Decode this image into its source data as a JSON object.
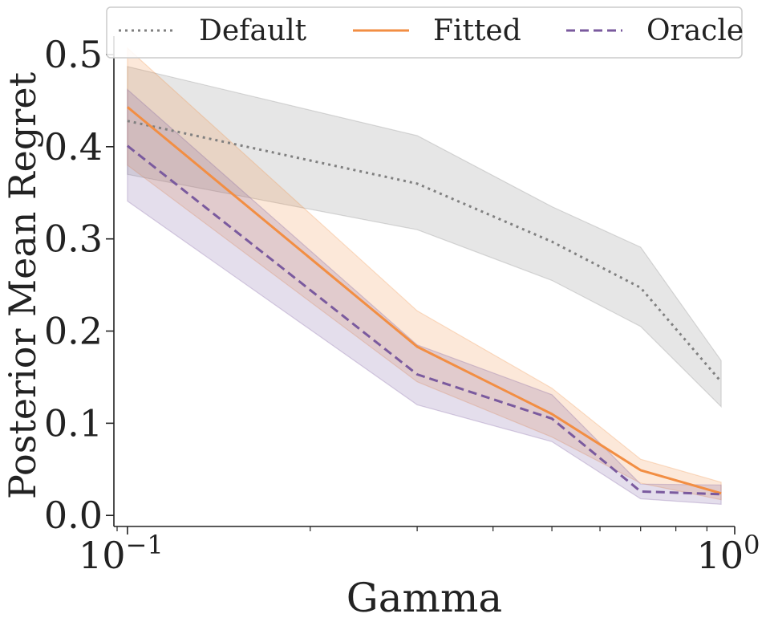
{
  "chart_data": {
    "type": "line",
    "xlabel": "Gamma",
    "ylabel": "Posterior Mean Regret",
    "xscale": "log",
    "xlim": [
      0.095,
      1.0
    ],
    "ylim": [
      -0.012,
      0.52
    ],
    "x_ticks": [
      {
        "base": "10",
        "exp": "−1",
        "value": 0.1
      },
      {
        "base": "10",
        "exp": "0",
        "value": 1.0
      }
    ],
    "y_ticks": [
      "0.0",
      "0.1",
      "0.2",
      "0.3",
      "0.4",
      "0.5"
    ],
    "legend_position": "top",
    "x": [
      0.1,
      0.3,
      0.5,
      0.7,
      0.95
    ],
    "series": [
      {
        "name": "Default",
        "color": "#808080",
        "style": "dotted",
        "values": [
          0.428,
          0.36,
          0.297,
          0.247,
          0.145
        ],
        "lower": [
          0.37,
          0.31,
          0.255,
          0.205,
          0.118
        ],
        "upper": [
          0.487,
          0.412,
          0.335,
          0.291,
          0.168
        ]
      },
      {
        "name": "Fitted",
        "color": "#f28e43",
        "style": "solid",
        "values": [
          0.443,
          0.183,
          0.11,
          0.049,
          0.024
        ],
        "lower": [
          0.38,
          0.145,
          0.085,
          0.035,
          0.017
        ],
        "upper": [
          0.507,
          0.222,
          0.138,
          0.061,
          0.036
        ]
      },
      {
        "name": "Oracle",
        "color": "#7a5a9e",
        "style": "dashed",
        "values": [
          0.401,
          0.153,
          0.105,
          0.026,
          0.023
        ],
        "lower": [
          0.341,
          0.12,
          0.08,
          0.018,
          0.012
        ],
        "upper": [
          0.462,
          0.185,
          0.131,
          0.034,
          0.033
        ]
      }
    ]
  }
}
